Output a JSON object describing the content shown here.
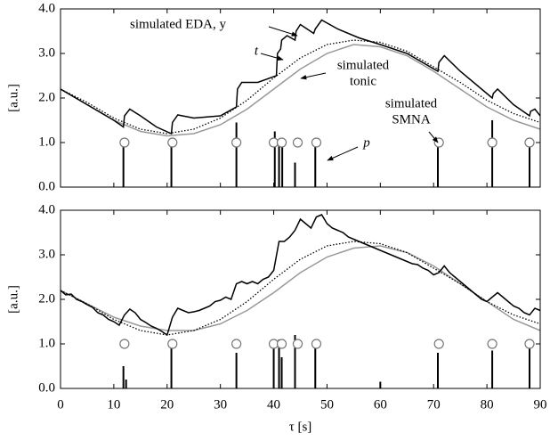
{
  "chart_data": [
    {
      "type": "line",
      "ylabel": "[a.u.]",
      "xlim": [
        0,
        90
      ],
      "ylim": [
        0,
        4
      ],
      "yticks": [
        {
          "value": 0,
          "label": "0.0"
        },
        {
          "value": 1,
          "label": "1.0"
        },
        {
          "value": 2,
          "label": "2.0"
        },
        {
          "value": 3,
          "label": "3.0"
        },
        {
          "value": 4,
          "label": "4.0"
        }
      ],
      "annotations": [
        [
          "simulated EDA, y"
        ],
        [
          "t"
        ],
        [
          "simulated",
          "tonic"
        ],
        [
          "simulated",
          "SMNA"
        ],
        [
          "p"
        ]
      ],
      "series": [
        {
          "color": "#999999",
          "dash": false,
          "x": [
            0,
            5,
            10,
            15,
            20,
            25,
            30,
            35,
            40,
            45,
            50,
            55,
            60,
            65,
            70,
            75,
            80,
            85,
            90
          ],
          "values": [
            2.2,
            1.85,
            1.5,
            1.25,
            1.15,
            1.2,
            1.4,
            1.75,
            2.2,
            2.65,
            3.0,
            3.2,
            3.15,
            2.95,
            2.6,
            2.2,
            1.8,
            1.5,
            1.3
          ]
        },
        {
          "color": "#000000",
          "dash": true,
          "x": [
            0,
            5,
            10,
            15,
            20,
            25,
            30,
            35,
            40,
            45,
            50,
            55,
            60,
            65,
            70,
            75,
            80,
            85,
            90
          ],
          "values": [
            2.2,
            1.9,
            1.55,
            1.3,
            1.2,
            1.3,
            1.55,
            1.95,
            2.45,
            2.9,
            3.2,
            3.3,
            3.25,
            3.05,
            2.7,
            2.35,
            1.95,
            1.65,
            1.45
          ]
        },
        {
          "color": "#000000",
          "dash": false,
          "x": [
            0,
            5,
            10,
            11.8,
            12,
            13,
            15,
            18,
            20.8,
            21,
            22,
            25,
            30,
            33,
            33.2,
            34,
            37,
            40.5,
            40.7,
            41.3,
            41.5,
            42.5,
            44,
            44.2,
            45,
            47.5,
            47.8,
            49,
            52,
            56,
            60,
            65,
            70.8,
            71,
            72,
            75,
            80,
            81,
            81.2,
            82,
            85,
            88,
            88.2,
            89,
            90
          ],
          "values": [
            2.2,
            1.85,
            1.5,
            1.35,
            1.6,
            1.75,
            1.6,
            1.35,
            1.2,
            1.45,
            1.62,
            1.55,
            1.6,
            1.8,
            2.2,
            2.35,
            2.35,
            2.5,
            3.0,
            3.1,
            3.3,
            3.4,
            3.3,
            3.5,
            3.65,
            3.45,
            3.55,
            3.75,
            3.55,
            3.35,
            3.2,
            3.0,
            2.6,
            2.8,
            2.95,
            2.6,
            2.1,
            2.0,
            2.1,
            2.2,
            1.85,
            1.6,
            1.7,
            1.75,
            1.6
          ]
        }
      ],
      "spikes": {
        "color": "#000000",
        "x": [
          11.8,
          20.8,
          33,
          40.2,
          41,
          41.6,
          44,
          47.8,
          70.8,
          81,
          88
        ],
        "values": [
          1.05,
          1.05,
          1.45,
          1.25,
          1.05,
          0.95,
          0.55,
          1.05,
          1.0,
          1.5,
          1.05
        ]
      },
      "events": {
        "color": "#777777",
        "x": [
          12,
          21,
          33,
          40,
          41.5,
          44.5,
          48,
          71,
          81,
          88
        ],
        "values": [
          1,
          1,
          1,
          1,
          1,
          1,
          1,
          1,
          1,
          1
        ]
      }
    },
    {
      "type": "line",
      "ylabel": "[a.u.]",
      "xlabel": "τ [s]",
      "xlim": [
        0,
        90
      ],
      "ylim": [
        0,
        4
      ],
      "xticks": [
        0,
        10,
        20,
        30,
        40,
        50,
        60,
        70,
        80,
        90
      ],
      "yticks": [
        {
          "value": 0,
          "label": "0.0"
        },
        {
          "value": 1,
          "label": "1.0"
        },
        {
          "value": 2,
          "label": "2.0"
        },
        {
          "value": 3,
          "label": "3.0"
        },
        {
          "value": 4,
          "label": "4.0"
        }
      ],
      "series": [
        {
          "color": "#999999",
          "dash": false,
          "x": [
            0,
            5,
            10,
            15,
            20,
            25,
            30,
            35,
            40,
            45,
            50,
            55,
            60,
            65,
            70,
            75,
            80,
            85,
            90
          ],
          "values": [
            2.2,
            1.9,
            1.6,
            1.4,
            1.3,
            1.3,
            1.45,
            1.75,
            2.15,
            2.6,
            2.95,
            3.15,
            3.2,
            3.05,
            2.75,
            2.35,
            1.95,
            1.55,
            1.3
          ]
        },
        {
          "color": "#000000",
          "dash": true,
          "x": [
            0,
            5,
            10,
            15,
            20,
            25,
            30,
            35,
            40,
            45,
            50,
            55,
            60,
            65,
            70,
            75,
            80,
            85,
            90
          ],
          "values": [
            2.2,
            1.9,
            1.55,
            1.3,
            1.2,
            1.3,
            1.55,
            1.95,
            2.45,
            2.9,
            3.2,
            3.3,
            3.25,
            3.05,
            2.7,
            2.35,
            1.95,
            1.65,
            1.45
          ]
        },
        {
          "color": "#000000",
          "dash": false,
          "x": [
            0,
            1,
            2,
            3,
            4,
            5,
            6,
            7,
            8,
            9,
            10,
            11,
            12,
            13,
            14,
            15,
            16,
            17,
            18,
            19,
            20,
            21,
            22,
            23,
            24,
            25,
            26,
            27,
            28,
            29,
            30,
            31,
            32,
            33,
            34,
            35,
            36,
            37,
            38,
            39,
            40,
            41,
            42,
            43,
            44,
            45,
            46,
            47,
            48,
            49,
            50,
            51,
            52,
            53,
            54,
            55,
            56,
            57,
            58,
            59,
            60,
            61,
            62,
            63,
            64,
            65,
            66,
            67,
            68,
            69,
            70,
            71,
            72,
            73,
            74,
            75,
            76,
            77,
            78,
            79,
            80,
            81,
            82,
            83,
            84,
            85,
            86,
            87,
            88,
            89,
            90
          ],
          "values": [
            2.2,
            2.1,
            2.12,
            2.0,
            1.95,
            1.88,
            1.82,
            1.7,
            1.65,
            1.55,
            1.5,
            1.42,
            1.65,
            1.78,
            1.7,
            1.55,
            1.48,
            1.4,
            1.35,
            1.28,
            1.2,
            1.6,
            1.8,
            1.75,
            1.7,
            1.72,
            1.75,
            1.8,
            1.85,
            1.95,
            1.98,
            2.05,
            2.0,
            2.35,
            2.4,
            2.35,
            2.4,
            2.35,
            2.45,
            2.5,
            2.65,
            3.3,
            3.3,
            3.4,
            3.55,
            3.8,
            3.7,
            3.6,
            3.85,
            3.9,
            3.7,
            3.6,
            3.55,
            3.5,
            3.4,
            3.35,
            3.3,
            3.25,
            3.2,
            3.15,
            3.1,
            3.05,
            3.0,
            2.95,
            2.9,
            2.85,
            2.8,
            2.78,
            2.7,
            2.65,
            2.55,
            2.6,
            2.75,
            2.6,
            2.5,
            2.4,
            2.3,
            2.2,
            2.1,
            2.0,
            1.95,
            2.05,
            2.15,
            2.05,
            1.95,
            1.85,
            1.8,
            1.7,
            1.65,
            1.8,
            1.75
          ]
        }
      ],
      "spikes": {
        "color": "#000000",
        "x": [
          11.8,
          12.3,
          20.8,
          33,
          40,
          41,
          41.5,
          44,
          47.8,
          60,
          70.8,
          81,
          88
        ],
        "values": [
          0.5,
          0.2,
          1.0,
          0.8,
          0.9,
          1.1,
          0.7,
          1.2,
          1.05,
          0.15,
          0.8,
          0.85,
          0.9
        ]
      },
      "events": {
        "color": "#777777",
        "x": [
          12,
          21,
          33,
          40,
          41.5,
          44.5,
          48,
          71,
          81,
          88
        ],
        "values": [
          1,
          1,
          1,
          1,
          1,
          1,
          1,
          1,
          1,
          1
        ]
      }
    }
  ]
}
